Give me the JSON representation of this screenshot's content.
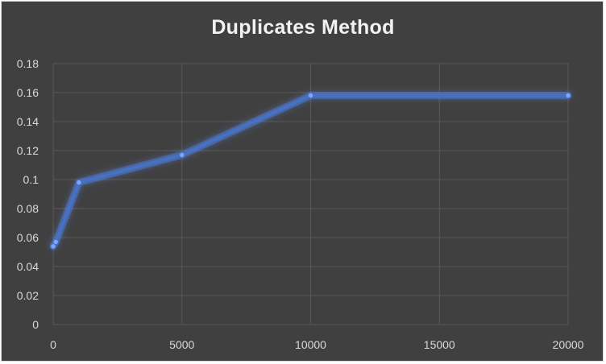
{
  "chart_data": {
    "type": "line",
    "title": "Duplicates Method",
    "xlabel": "",
    "ylabel": "",
    "xlim": [
      0,
      20000
    ],
    "ylim": [
      0,
      0.18
    ],
    "xticks": [
      0,
      5000,
      10000,
      15000,
      20000
    ],
    "xtick_labels": [
      "0",
      "5000",
      "10000",
      "15000",
      "20000"
    ],
    "yticks": [
      0,
      0.02,
      0.04,
      0.06,
      0.08,
      0.1,
      0.12,
      0.14,
      0.16,
      0.18
    ],
    "ytick_labels": [
      "0",
      "0.02",
      "0.04",
      "0.06",
      "0.08",
      "0.1",
      "0.12",
      "0.14",
      "0.16",
      "0.18"
    ],
    "grid": true,
    "legend": "none",
    "series": [
      {
        "x": [
          0,
          100,
          1000,
          5000,
          10000,
          20000
        ],
        "y": [
          0.054,
          0.057,
          0.098,
          0.117,
          0.158,
          0.158
        ]
      }
    ]
  },
  "colors": {
    "background": "#404040",
    "gridline": "#595959",
    "line": "#4472c4",
    "glow": "#5b8cff",
    "text": "#d9d9d9",
    "title": "#f2f2f2"
  }
}
